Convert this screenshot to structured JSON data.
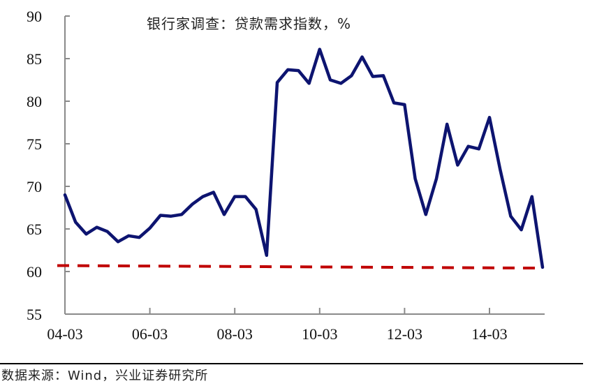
{
  "chart_data": {
    "type": "line",
    "title": "银行家调查：贷款需求指数，%",
    "xlabel": "",
    "ylabel": "",
    "ylim": [
      55,
      90
    ],
    "yticks": [
      55,
      60,
      65,
      70,
      75,
      80,
      85,
      90
    ],
    "xtick_labels": [
      "04-03",
      "06-03",
      "08-03",
      "10-03",
      "12-03",
      "14-03"
    ],
    "grid": false,
    "legend": null,
    "x": [
      "04-03",
      "04-06",
      "04-09",
      "04-12",
      "05-03",
      "05-06",
      "05-09",
      "05-12",
      "06-03",
      "06-06",
      "06-09",
      "06-12",
      "07-03",
      "07-06",
      "07-09",
      "07-12",
      "08-03",
      "08-06",
      "08-09",
      "08-12",
      "09-03",
      "09-06",
      "09-09",
      "09-12",
      "10-03",
      "10-06",
      "10-09",
      "10-12",
      "11-03",
      "11-06",
      "11-09",
      "11-12",
      "12-03",
      "12-06",
      "12-09",
      "12-12",
      "13-03",
      "13-06",
      "13-09",
      "13-12",
      "14-03",
      "14-06",
      "14-09",
      "14-12",
      "15-03",
      "15-06"
    ],
    "series": [
      {
        "name": "贷款需求指数",
        "color": "#0d1470",
        "style": "solid",
        "values": [
          69.0,
          65.8,
          64.4,
          65.2,
          64.7,
          63.5,
          64.2,
          64.0,
          65.1,
          66.6,
          66.5,
          66.7,
          67.9,
          68.8,
          69.3,
          66.7,
          68.8,
          68.8,
          67.3,
          61.9,
          82.2,
          83.7,
          83.6,
          82.1,
          86.1,
          82.5,
          82.1,
          83.0,
          85.2,
          82.9,
          83.0,
          79.8,
          79.6,
          70.9,
          66.7,
          70.9,
          77.3,
          72.5,
          74.7,
          74.4,
          78.1,
          72.0,
          66.5,
          64.9,
          68.8,
          60.5
        ]
      },
      {
        "name": "参考线",
        "color": "#c00000",
        "style": "dashed",
        "values_endpoints": [
          60.7,
          60.4
        ]
      }
    ]
  },
  "title": "银行家调查：贷款需求指数，%",
  "source": "数据来源：Wind，兴业证券研究所"
}
